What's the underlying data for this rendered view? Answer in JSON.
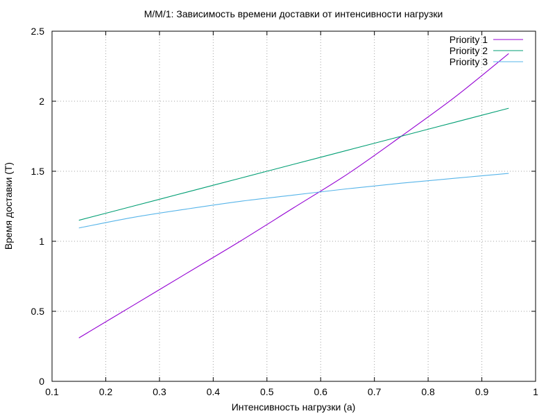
{
  "chart_data": {
    "type": "line",
    "title": "M/M/1: Зависимость времени доставки от интенсивности нагрузки",
    "xlabel": "Интенсивность нагрузки (a)",
    "ylabel": "Время доставки (T)",
    "xlim": [
      0.1,
      1.0
    ],
    "ylim": [
      0,
      2.5
    ],
    "x_ticks": [
      0.1,
      0.2,
      0.3,
      0.4,
      0.5,
      0.6,
      0.7,
      0.8,
      0.9,
      1.0
    ],
    "x_tick_labels": [
      "0.1",
      "0.2",
      "0.3",
      "0.4",
      "0.5",
      "0.6",
      "0.7",
      "0.8",
      "0.9",
      "1"
    ],
    "y_ticks": [
      0,
      0.5,
      1.0,
      1.5,
      2.0,
      2.5
    ],
    "y_tick_labels": [
      "0",
      "0.5",
      "1",
      "1.5",
      "2",
      "2.5"
    ],
    "grid": true,
    "legend_position": "top-right",
    "x": [
      0.15,
      0.25,
      0.35,
      0.45,
      0.55,
      0.65,
      0.75,
      0.85,
      0.95
    ],
    "series": [
      {
        "name": "Priority 1",
        "color": "#9400d3",
        "values": [
          0.31,
          0.54,
          0.77,
          1.0,
          1.24,
          1.48,
          1.75,
          2.03,
          2.34
        ]
      },
      {
        "name": "Priority 2",
        "color": "#009e73",
        "values": [
          1.15,
          1.25,
          1.35,
          1.45,
          1.55,
          1.65,
          1.75,
          1.85,
          1.95
        ]
      },
      {
        "name": "Priority 3",
        "color": "#56b4e9",
        "values": [
          1.095,
          1.17,
          1.23,
          1.285,
          1.33,
          1.375,
          1.415,
          1.45,
          1.485
        ]
      }
    ]
  }
}
